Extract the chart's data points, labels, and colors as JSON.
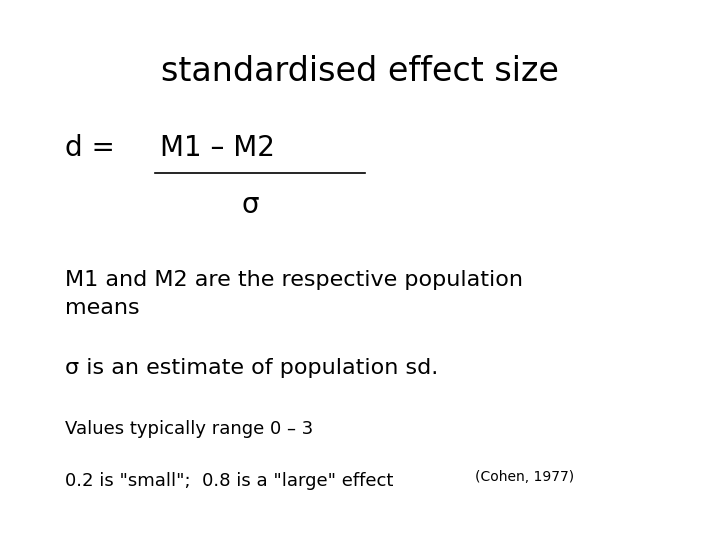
{
  "title": "standardised effect size",
  "title_fontsize": 24,
  "background_color": "#ffffff",
  "text_color": "#000000",
  "d_equals_text": "d = ",
  "d_equals_fontsize": 20,
  "numerator_text": "M1 – M2",
  "numerator_fontsize": 20,
  "denominator_text": "σ",
  "denominator_fontsize": 20,
  "body_text_1": "M1 and M2 are the respective population\nmeans",
  "body_text_1_fontsize": 16,
  "body_text_2": "σ is an estimate of population sd.",
  "body_text_2_fontsize": 16,
  "values_text": "Values typically range 0 – 3",
  "values_fontsize": 13,
  "cohen_text_main": "0.2 is \"small\";  0.8 is a \"large\" effect ",
  "cohen_text_super": "(Cohen, 1977)",
  "cohen_fontsize": 13,
  "cohen_super_fontsize": 10
}
